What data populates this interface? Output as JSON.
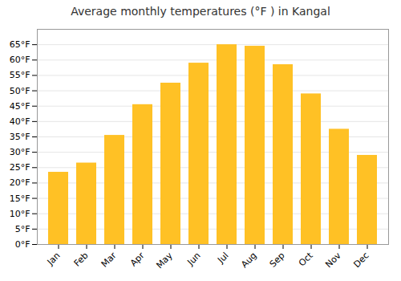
{
  "chart_data": {
    "type": "bar",
    "title": "Average monthly temperatures (°F ) in Kangal",
    "categories": [
      "Jan",
      "Feb",
      "Mar",
      "Apr",
      "May",
      "Jun",
      "Jul",
      "Aug",
      "Sep",
      "Oct",
      "Nov",
      "Dec"
    ],
    "values": [
      23.5,
      26.5,
      35.5,
      45.5,
      52.5,
      59,
      65,
      64.5,
      58.5,
      49,
      37.5,
      29
    ],
    "color": "#FFC125",
    "ylim": [
      0,
      70
    ],
    "yticks": [
      {
        "value": 0,
        "label": "0°F"
      },
      {
        "value": 5,
        "label": "5°F"
      },
      {
        "value": 10,
        "label": "10°F"
      },
      {
        "value": 15,
        "label": "15°F"
      },
      {
        "value": 20,
        "label": "20°F"
      },
      {
        "value": 25,
        "label": "25°F"
      },
      {
        "value": 30,
        "label": "30°F"
      },
      {
        "value": 35,
        "label": "35°F"
      },
      {
        "value": 40,
        "label": "40°F"
      },
      {
        "value": 45,
        "label": "45°F"
      },
      {
        "value": 50,
        "label": "50°F"
      },
      {
        "value": 55,
        "label": "55°F"
      },
      {
        "value": 60,
        "label": "60°F"
      },
      {
        "value": 65,
        "label": "65°F"
      }
    ],
    "grid": true
  }
}
